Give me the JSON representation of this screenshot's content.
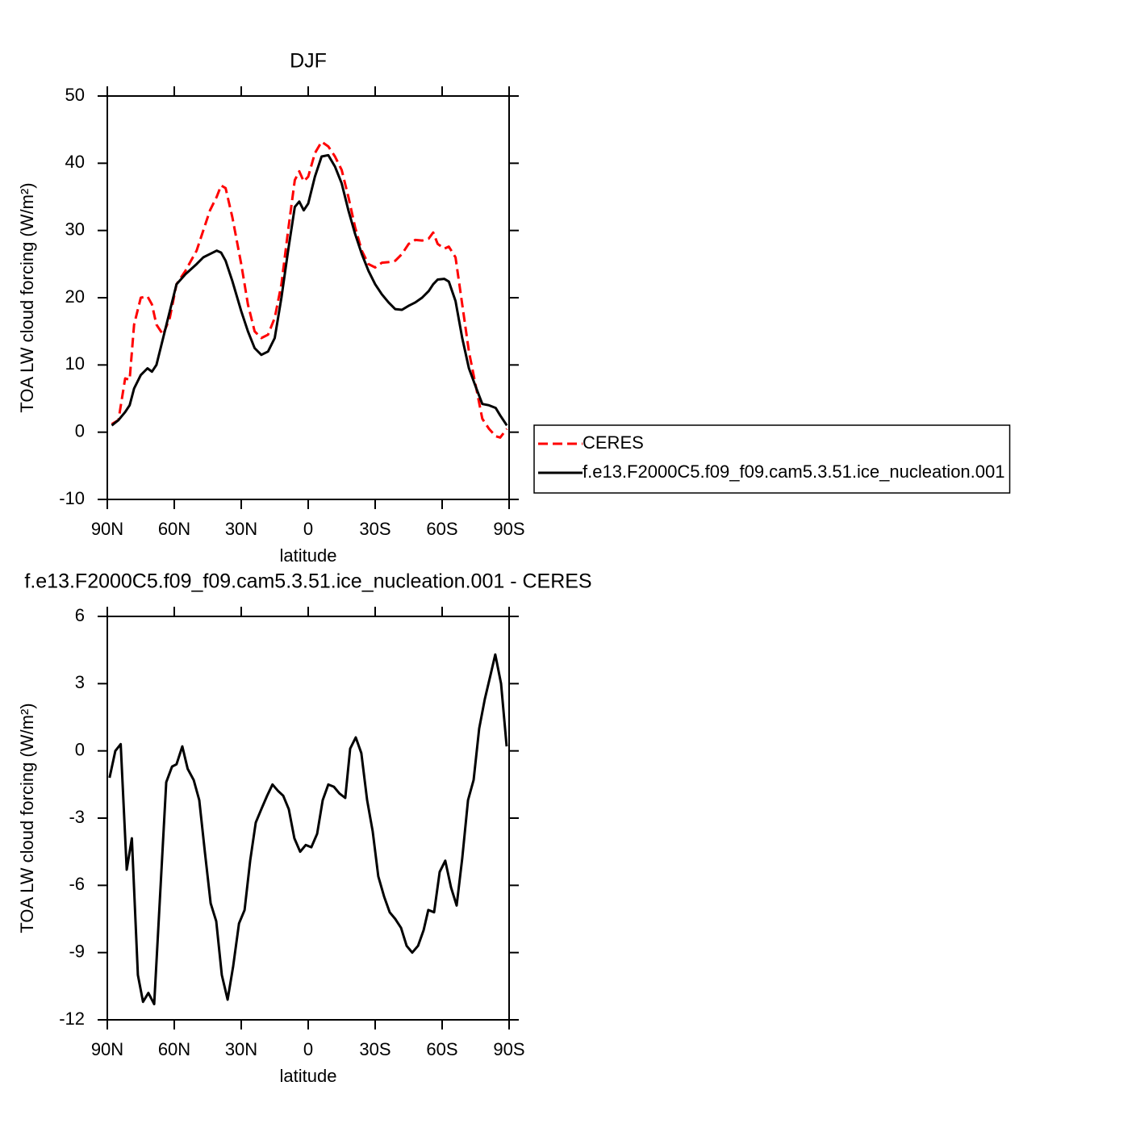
{
  "chart_data": [
    {
      "type": "line",
      "title": "DJF",
      "ylabel": "TOA LW cloud forcing (W/m²)",
      "xlabel": "latitude",
      "x": [
        88,
        85,
        82,
        80,
        78,
        75,
        72,
        70,
        68,
        65,
        62,
        59,
        55,
        50,
        47,
        44,
        41,
        39,
        37,
        34,
        30,
        27,
        24,
        21,
        18,
        15,
        12,
        9,
        6,
        4,
        2,
        0,
        -3,
        -6,
        -9,
        -12,
        -15,
        -18,
        -21,
        -24,
        -27,
        -30,
        -33,
        -36,
        -39,
        -42,
        -45,
        -48,
        -51,
        -54,
        -56,
        -58,
        -61,
        -63,
        -66,
        -69,
        -72,
        -75,
        -78,
        -81,
        -84,
        -86,
        -89
      ],
      "series": [
        {
          "name": "CERES",
          "color": "#ff0000",
          "line_style": "dashed",
          "values": [
            1.2,
            1.8,
            8,
            7.8,
            16,
            20,
            20.2,
            19,
            16,
            14.5,
            17,
            22,
            24,
            27,
            30,
            33,
            35,
            36.7,
            36.3,
            32,
            25,
            19,
            15,
            14,
            14.5,
            17,
            22,
            30,
            37.5,
            38.8,
            37.3,
            38,
            41.5,
            43.2,
            42.5,
            41,
            39,
            35,
            30.5,
            27,
            25,
            24.5,
            25.2,
            25.3,
            25.5,
            26.5,
            28,
            28.6,
            28.5,
            28.8,
            29.7,
            28,
            27.3,
            27.6,
            26,
            19,
            12,
            7,
            2,
            0.5,
            -0.6,
            -0.8,
            0.5
          ]
        },
        {
          "name": "f.e13.F2000C5.f09_f09.cam5.3.51.ice_nucleation.001",
          "color": "#000000",
          "line_style": "solid",
          "values": [
            1,
            1.8,
            3,
            4,
            6.5,
            8.5,
            9.5,
            9,
            10,
            14,
            18,
            22,
            23.5,
            25,
            26,
            26.5,
            27,
            26.7,
            25.5,
            22.5,
            18,
            15,
            12.5,
            11.5,
            12,
            14,
            20,
            27,
            33.5,
            34.3,
            33,
            34,
            38,
            41,
            41.2,
            39.5,
            37,
            33,
            29.5,
            26.5,
            24,
            22,
            20.5,
            19.3,
            18.3,
            18.2,
            18.8,
            19.3,
            20,
            21,
            22,
            22.7,
            22.8,
            22.4,
            19.5,
            14,
            9.5,
            6.8,
            4.2,
            4,
            3.6,
            2.5,
            1
          ]
        }
      ],
      "xlim": [
        90,
        -90
      ],
      "xticks": [
        {
          "value": 90,
          "label": "90N"
        },
        {
          "value": 60,
          "label": "60N"
        },
        {
          "value": 30,
          "label": "30N"
        },
        0,
        {
          "value": -30,
          "label": "30S"
        },
        {
          "value": -60,
          "label": "60S"
        },
        {
          "value": -90,
          "label": "90S"
        }
      ],
      "ylim": [
        -10,
        50
      ],
      "yticks": [
        -10,
        0,
        10,
        20,
        30,
        40,
        50
      ],
      "legend": "right"
    },
    {
      "type": "line",
      "title": "f.e13.F2000C5.f09_f09.cam5.3.51.ice_nucleation.001 - CERES",
      "ylabel": "TOA LW cloud forcing (W/m²)",
      "xlabel": "latitude",
      "x": [
        89,
        86.4,
        84,
        81.3,
        79,
        76.3,
        74,
        71.6,
        69,
        63.6,
        61,
        59,
        56.4,
        54,
        51.3,
        48.8,
        46.3,
        43.7,
        41.2,
        38.7,
        36.1,
        33.6,
        31,
        28.5,
        26,
        23.5,
        21,
        18.4,
        16,
        13.4,
        11.2,
        8.7,
        6.2,
        3.6,
        1.1,
        -1.4,
        -4,
        -6.5,
        -9,
        -11.5,
        -14,
        -16.6,
        -18.8,
        -21.3,
        -23.8,
        -26.4,
        -28.9,
        -31.4,
        -34,
        -36.5,
        -39,
        -41.6,
        -44.1,
        -46.6,
        -49.2,
        -51.7,
        -53.8,
        -56.4,
        -58.9,
        -61.4,
        -64,
        -66.5,
        -69,
        -71.6,
        -74.1,
        -76.6,
        -79.1,
        -81.7,
        -83.8,
        -86.4,
        -88.9
      ],
      "values": [
        -1.2,
        0,
        0.3,
        -5.3,
        -3.9,
        -10,
        -11.2,
        -10.8,
        -11.3,
        -1.4,
        -0.7,
        -0.6,
        0.2,
        -0.8,
        -1.3,
        -2.2,
        -4.5,
        -6.8,
        -7.6,
        -10,
        -11.1,
        -9.6,
        -7.7,
        -7.1,
        -4.9,
        -3.2,
        -2.6,
        -2,
        -1.5,
        -1.8,
        -2,
        -2.6,
        -3.9,
        -4.5,
        -4.2,
        -4.3,
        -3.7,
        -2.2,
        -1.5,
        -1.6,
        -1.9,
        -2.1,
        0.1,
        0.6,
        -0.1,
        -2.2,
        -3.6,
        -5.6,
        -6.5,
        -7.2,
        -7.5,
        -7.9,
        -8.7,
        -9,
        -8.7,
        -8,
        -7.1,
        -7.2,
        -5.4,
        -4.9,
        -6.1,
        -6.9,
        -4.8,
        -2.2,
        -1.3,
        1,
        2.3,
        3.4,
        4.3,
        3,
        0.2
      ],
      "color": "#000000",
      "line_style": "solid",
      "xlim": [
        90,
        -90
      ],
      "xticks": [
        {
          "value": 90,
          "label": "90N"
        },
        {
          "value": 60,
          "label": "60N"
        },
        {
          "value": 30,
          "label": "30N"
        },
        0,
        {
          "value": -30,
          "label": "30S"
        },
        {
          "value": -60,
          "label": "60S"
        },
        {
          "value": -90,
          "label": "90S"
        }
      ],
      "ylim": [
        -12,
        6
      ],
      "yticks": [
        -12,
        -9,
        -6,
        -3,
        0,
        3,
        6
      ]
    }
  ]
}
